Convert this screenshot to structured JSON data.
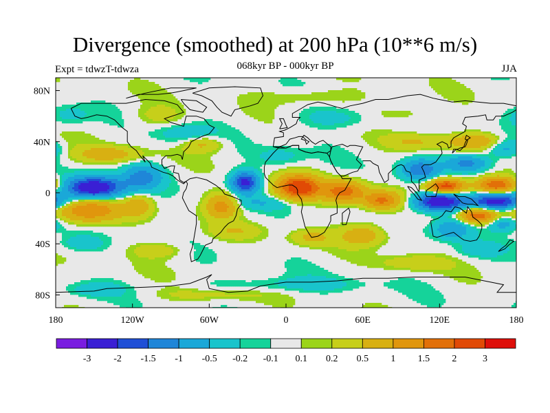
{
  "figure": {
    "title": "Divergence (smoothed) at 200 hPa (10**6 m/s)",
    "subtitle": "068kyr BP - 000kyr BP",
    "left_label": "Expt = tdwzT-tdwza",
    "right_label": "JJA"
  },
  "axes": {
    "lon_ticks": [
      {
        "value": -180,
        "label": "180"
      },
      {
        "value": -120,
        "label": "120W"
      },
      {
        "value": -60,
        "label": "60W"
      },
      {
        "value": 0,
        "label": "0"
      },
      {
        "value": 60,
        "label": "60E"
      },
      {
        "value": 120,
        "label": "120E"
      },
      {
        "value": 180,
        "label": "180"
      }
    ],
    "lat_ticks": [
      {
        "value": 80,
        "label": "80N"
      },
      {
        "value": 40,
        "label": "40N"
      },
      {
        "value": 0,
        "label": "0"
      },
      {
        "value": -40,
        "label": "40S"
      },
      {
        "value": -80,
        "label": "80S"
      }
    ],
    "lon_range": [
      -180,
      180
    ],
    "lat_range": [
      -90,
      90
    ]
  },
  "colorbar": {
    "colors": [
      "#7a1de0",
      "#3a1fd4",
      "#1f4fd6",
      "#1f86d8",
      "#1aa8d8",
      "#19c4cc",
      "#15d39a",
      "#e8e8e8",
      "#9bd41a",
      "#c7cf1a",
      "#d8b012",
      "#e0960d",
      "#e27008",
      "#e14a05",
      "#de0f0a"
    ],
    "labels": [
      "-3",
      "-2",
      "-1.5",
      "-1",
      "-0.5",
      "-0.2",
      "-0.1",
      "0.1",
      "0.2",
      "0.5",
      "1",
      "1.5",
      "2",
      "3"
    ]
  },
  "field_anomalies": [
    {
      "lon": -150,
      "lat": 4,
      "rlon": 22,
      "rlat": 8,
      "v": -2.8
    },
    {
      "lon": -112,
      "lat": 12,
      "rlon": 14,
      "rlat": 9,
      "v": -1.2
    },
    {
      "lon": -32,
      "lat": 8,
      "rlon": 10,
      "rlat": 8,
      "v": -2.2
    },
    {
      "lon": 120,
      "lat": -7,
      "rlon": 18,
      "rlat": 7,
      "v": -2.8
    },
    {
      "lon": 165,
      "lat": -7,
      "rlon": 20,
      "rlat": 6,
      "v": -2.4
    },
    {
      "lon": 105,
      "lat": 18,
      "rlon": 14,
      "rlat": 8,
      "v": -1.4
    },
    {
      "lon": 142,
      "lat": 23,
      "rlon": 16,
      "rlat": 6,
      "v": -1.2
    },
    {
      "lon": 170,
      "lat": 36,
      "rlon": 14,
      "rlat": 8,
      "v": -0.8
    },
    {
      "lon": 130,
      "lat": -28,
      "rlon": 15,
      "rlat": 8,
      "v": -0.9
    },
    {
      "lon": 170,
      "lat": -24,
      "rlon": 12,
      "rlat": 6,
      "v": -0.8
    },
    {
      "lon": -80,
      "lat": 46,
      "rlon": 22,
      "rlat": 8,
      "v": -0.4
    },
    {
      "lon": 40,
      "lat": 58,
      "rlon": 35,
      "rlat": 8,
      "v": -0.3
    },
    {
      "lon": -5,
      "lat": 28,
      "rlon": 20,
      "rlat": 8,
      "v": -0.3
    },
    {
      "lon": -170,
      "lat": 60,
      "rlon": 16,
      "rlat": 8,
      "v": -0.3
    },
    {
      "lon": 0,
      "lat": -72,
      "rlon": 60,
      "rlat": 6,
      "v": -0.3
    },
    {
      "lon": -150,
      "lat": -76,
      "rlon": 22,
      "rlat": 6,
      "v": -0.3
    },
    {
      "lon": -20,
      "lat": -8,
      "rlon": 28,
      "rlat": 5,
      "v": -0.4
    },
    {
      "lon": -160,
      "lat": -40,
      "rlon": 18,
      "rlat": 6,
      "v": -0.3
    },
    {
      "lon": 150,
      "lat": -45,
      "rlon": 18,
      "rlat": 6,
      "v": -0.3
    },
    {
      "lon": 60,
      "lat": -30,
      "rlon": 20,
      "rlat": 6,
      "v": -0.3
    },
    {
      "lon": 10,
      "lat": 4,
      "rlon": 16,
      "rlat": 9,
      "v": 2.6
    },
    {
      "lon": 45,
      "lat": 1,
      "rlon": 16,
      "rlat": 8,
      "v": 1.8
    },
    {
      "lon": 75,
      "lat": -6,
      "rlon": 14,
      "rlat": 7,
      "v": 1.6
    },
    {
      "lon": 125,
      "lat": 5,
      "rlon": 14,
      "rlat": 6,
      "v": 2.4
    },
    {
      "lon": 165,
      "lat": 6,
      "rlon": 16,
      "rlat": 6,
      "v": 2.0
    },
    {
      "lon": 150,
      "lat": -18,
      "rlon": 14,
      "rlat": 6,
      "v": 1.9
    },
    {
      "lon": -155,
      "lat": -14,
      "rlon": 25,
      "rlat": 9,
      "v": 1.5
    },
    {
      "lon": -115,
      "lat": -10,
      "rlon": 10,
      "rlat": 8,
      "v": 0.8
    },
    {
      "lon": -50,
      "lat": -10,
      "rlon": 12,
      "rlat": 9,
      "v": 1.3
    },
    {
      "lon": 60,
      "lat": -32,
      "rlon": 18,
      "rlat": 8,
      "v": 1.1
    },
    {
      "lon": 20,
      "lat": -35,
      "rlon": 15,
      "rlat": 6,
      "v": 0.6
    },
    {
      "lon": -140,
      "lat": 30,
      "rlon": 25,
      "rlat": 6,
      "v": 0.8
    },
    {
      "lon": -65,
      "lat": 38,
      "rlon": 15,
      "rlat": 6,
      "v": 0.6
    },
    {
      "lon": 150,
      "lat": 40,
      "rlon": 25,
      "rlat": 6,
      "v": 0.9
    },
    {
      "lon": 100,
      "lat": 40,
      "rlon": 20,
      "rlat": 6,
      "v": 0.5
    },
    {
      "lon": -100,
      "lat": -45,
      "rlon": 20,
      "rlat": 6,
      "v": 0.4
    },
    {
      "lon": 100,
      "lat": -55,
      "rlon": 25,
      "rlat": 6,
      "v": 0.4
    },
    {
      "lon": -100,
      "lat": 60,
      "rlon": 20,
      "rlat": 8,
      "v": 0.3
    },
    {
      "lon": 20,
      "lat": 75,
      "rlon": 40,
      "rlat": 6,
      "v": 0.3
    },
    {
      "lon": 90,
      "lat": 62,
      "rlon": 25,
      "rlat": 6,
      "v": 0.3
    },
    {
      "lon": -40,
      "lat": -30,
      "rlon": 20,
      "rlat": 6,
      "v": 0.4
    },
    {
      "lon": -60,
      "lat": -80,
      "rlon": 40,
      "rlat": 5,
      "v": 0.3
    }
  ]
}
